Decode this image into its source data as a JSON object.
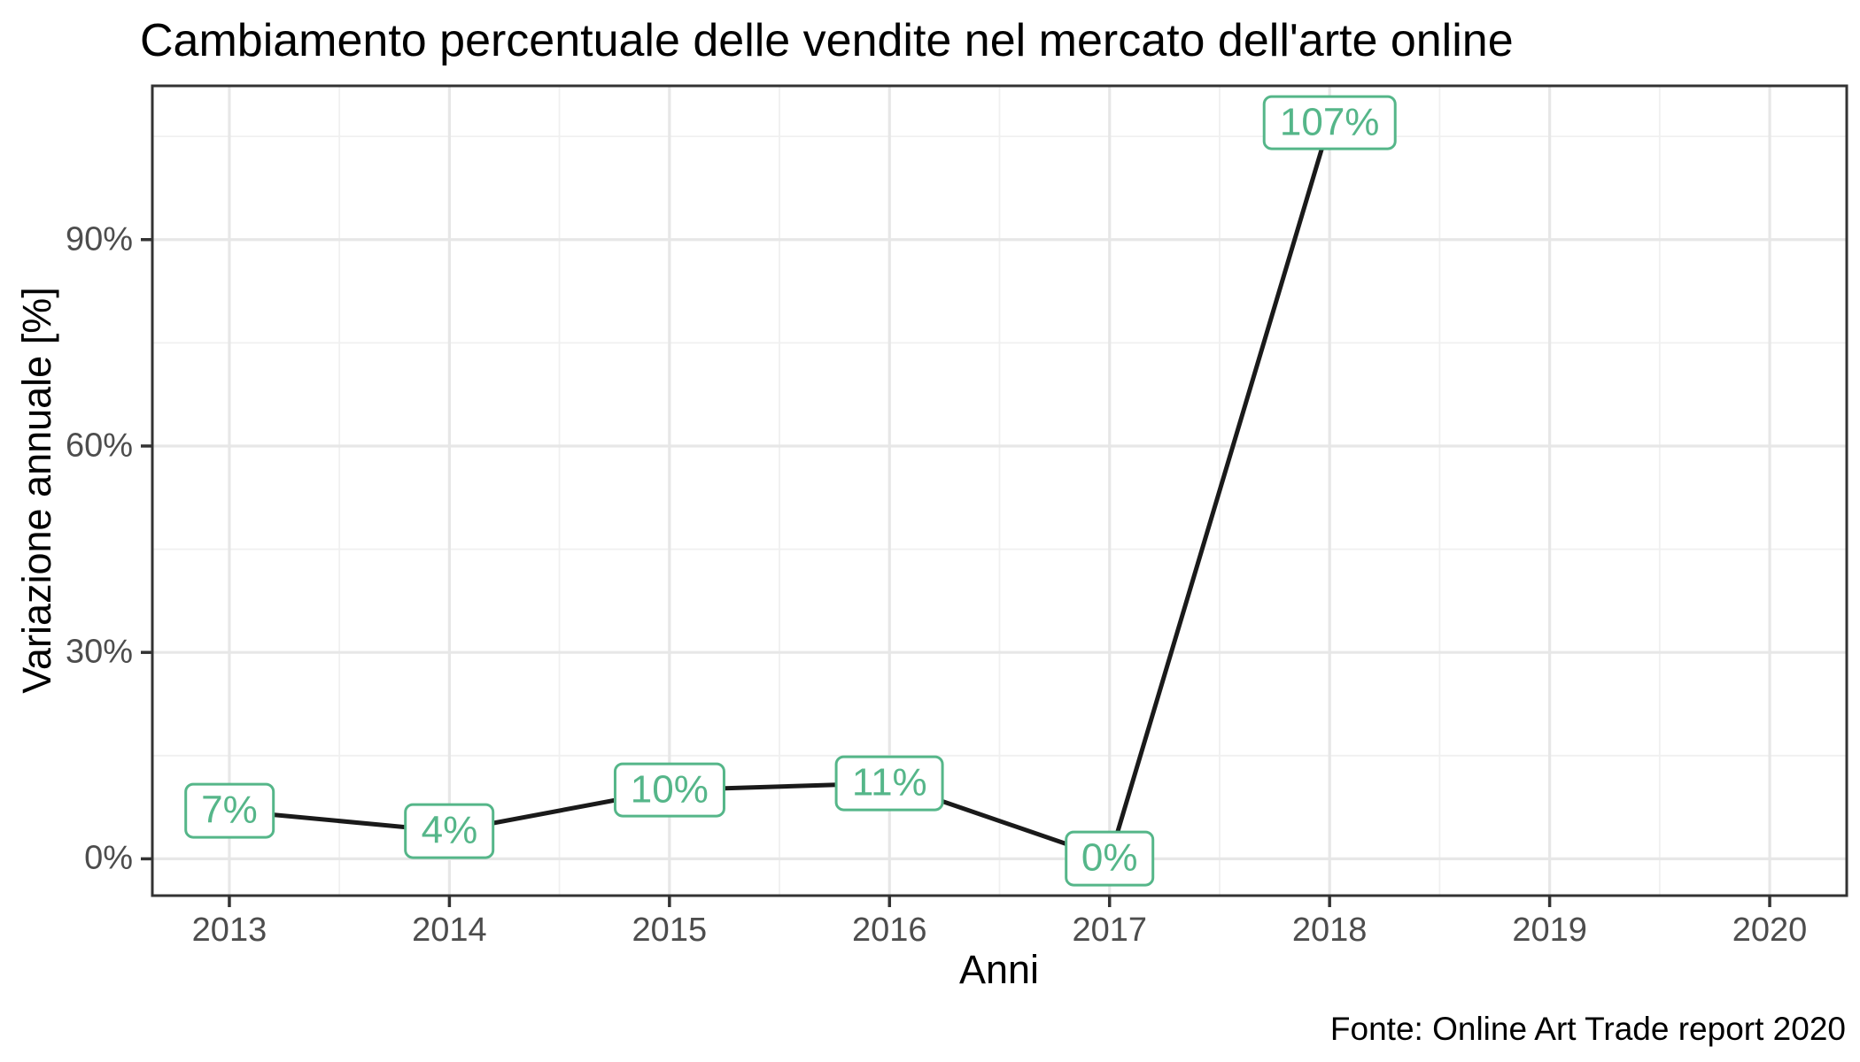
{
  "chart_data": {
    "type": "line",
    "title": "Cambiamento percentuale delle vendite nel mercato dell'arte online",
    "xlabel": "Anni",
    "ylabel": "Variazione annuale [%]",
    "caption": "Fonte: Online Art Trade report 2020",
    "x": [
      2013,
      2014,
      2015,
      2016,
      2017,
      2018
    ],
    "values": [
      7,
      4,
      10,
      11,
      0,
      107
    ],
    "point_labels": [
      "7%",
      "4%",
      "10%",
      "11%",
      "0%",
      "107%"
    ],
    "x_ticks": {
      "values": [
        2013,
        2014,
        2015,
        2016,
        2017,
        2018,
        2019,
        2020
      ],
      "labels": [
        "2013",
        "2014",
        "2015",
        "2016",
        "2017",
        "2018",
        "2019",
        "2020"
      ]
    },
    "y_ticks": {
      "values": [
        0,
        30,
        60,
        90
      ],
      "labels": [
        "0%",
        "30%",
        "60%",
        "90%"
      ]
    },
    "x_minor_gridlines": [
      2013.5,
      2014.5,
      2015.5,
      2016.5,
      2017.5,
      2018.5,
      2019.5
    ],
    "y_minor_gridlines": [
      15,
      45,
      75,
      105
    ],
    "xlim": [
      2012.65,
      2020.35
    ],
    "ylim": [
      -5.35,
      112.35
    ],
    "grid": "major and minor gridlines on, white panel",
    "legend": "none",
    "colors": {
      "line": "#1a1a1a",
      "label_text": "#55b689",
      "label_border": "#55b689",
      "label_fill": "#ffffff",
      "grid_major": "#e7e7e7",
      "grid_minor": "#f0f0f0",
      "panel_border": "#333333",
      "tick_mark": "#333333",
      "axis_tick_text": "#4d4d4d",
      "title_text": "#000000",
      "background": "#ffffff"
    }
  }
}
